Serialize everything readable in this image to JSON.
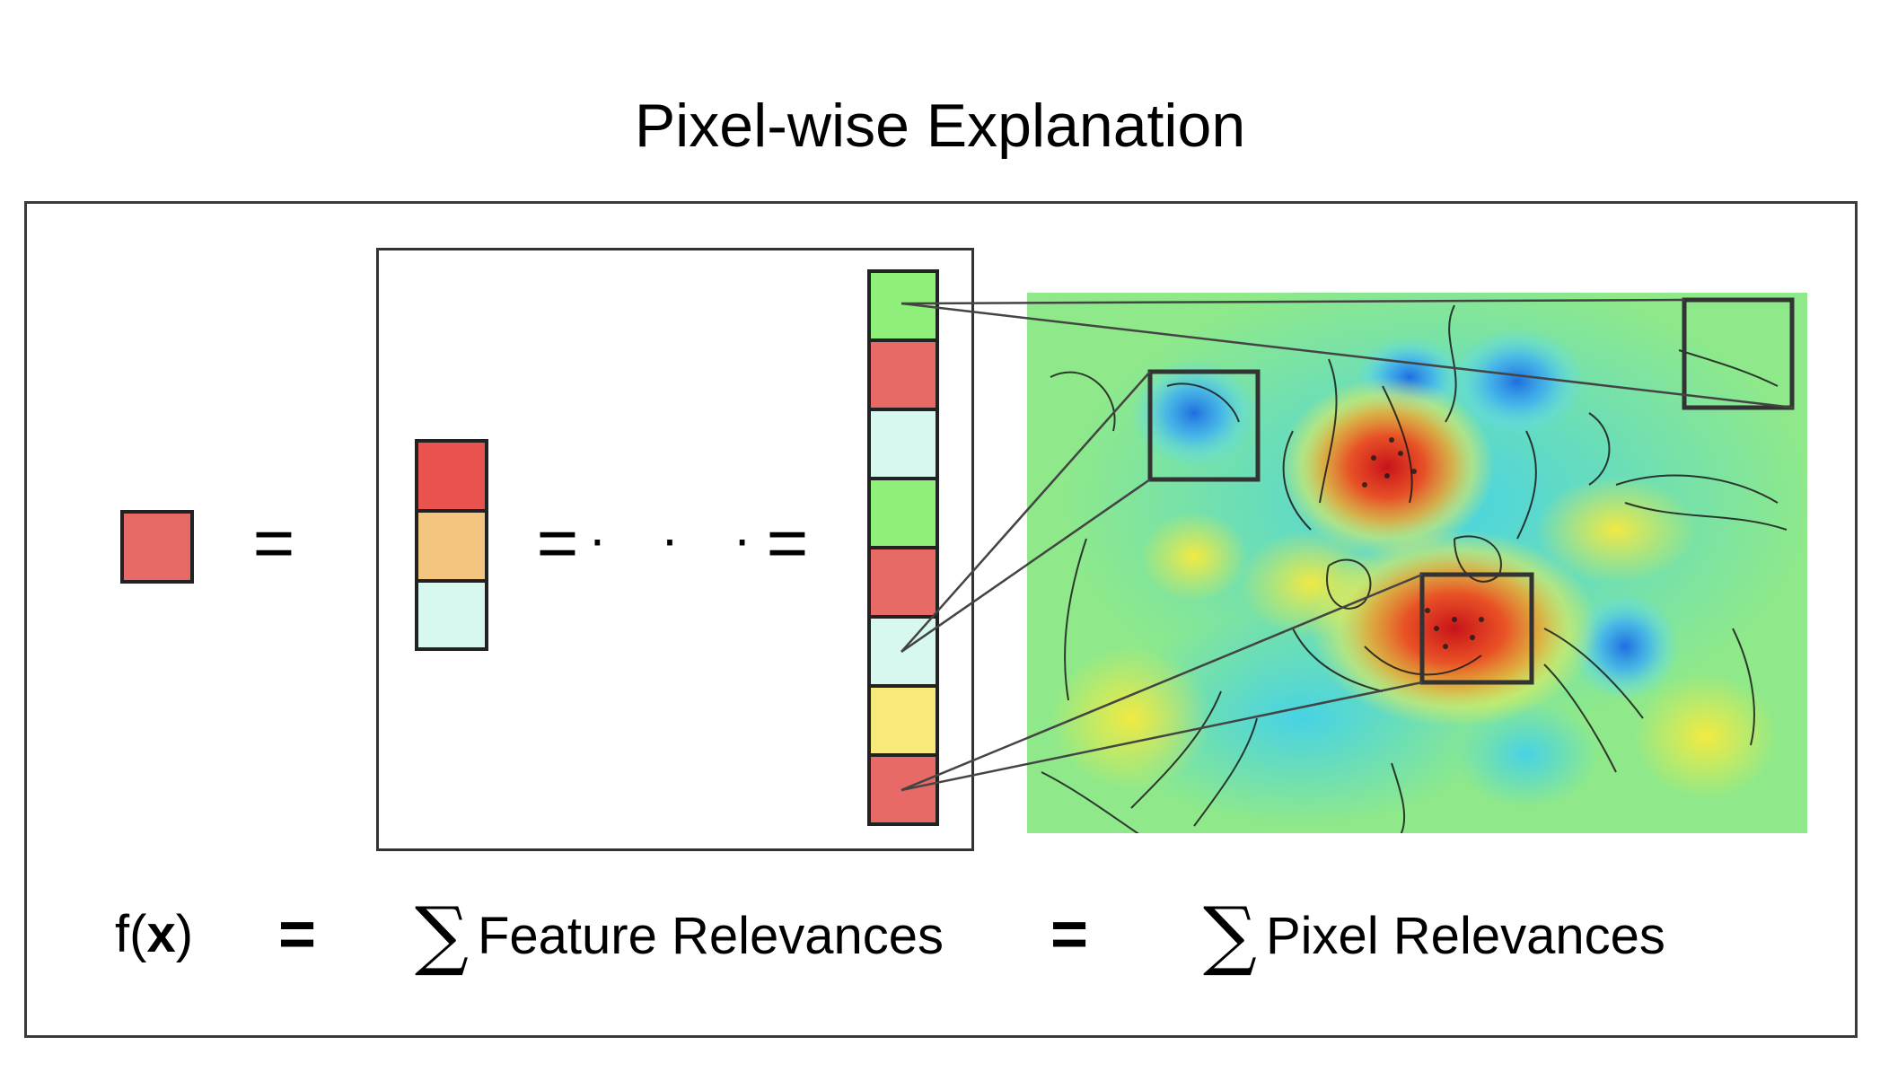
{
  "title": "Pixel-wise Explanation",
  "colors": {
    "red": "#e8544d",
    "light_red": "#e86a66",
    "orange": "#f3c57e",
    "mint": "#d7f8ef",
    "green": "#8ef07a",
    "yellow": "#f7e97a",
    "frame": "#3a3a3a"
  },
  "left": {
    "output_color": "light_red",
    "equals": "="
  },
  "middle": {
    "column_colors": [
      "red",
      "orange",
      "mint"
    ],
    "equals_left": "=",
    "dots": "· · ·",
    "equals_right": "="
  },
  "long_column": {
    "colors": [
      "green",
      "light_red",
      "mint",
      "green",
      "light_red",
      "mint",
      "yellow",
      "light_red"
    ]
  },
  "heatmap": {
    "colormap": "jet",
    "description_hidden": true,
    "highlighted_regions": 3
  },
  "formula": {
    "fx_prefix": "f(",
    "fx_x": "x",
    "fx_suffix": ")",
    "equals": "=",
    "sigma": "∑",
    "feature_relevances": "Feature Relevances",
    "pixel_relevances": "Pixel Relevances"
  }
}
